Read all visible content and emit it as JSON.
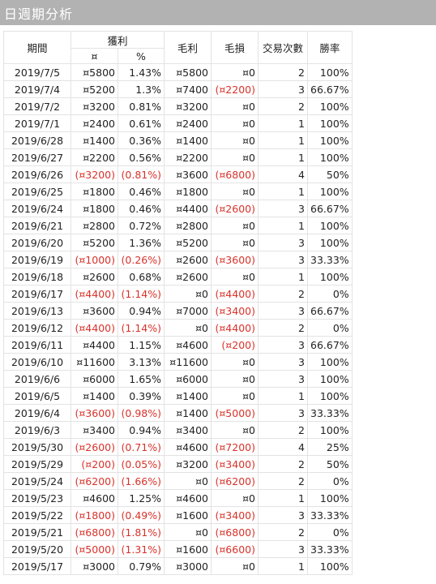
{
  "title": "日週期分析",
  "headers": {
    "period": "期間",
    "profit": "獲利",
    "profit_amount": "¤",
    "profit_percent": "%",
    "gross_profit": "毛利",
    "gross_loss": "毛損",
    "trades": "交易次數",
    "win_rate": "勝率"
  },
  "rows": [
    {
      "date": "2019/7/5",
      "amount": "¤5800",
      "pct": "1.43%",
      "gp": "¤5800",
      "gl": "¤0",
      "trades": "2",
      "win": "100%",
      "neg": false,
      "gl_neg": false
    },
    {
      "date": "2019/7/4",
      "amount": "¤5200",
      "pct": "1.3%",
      "gp": "¤7400",
      "gl": "(¤2200)",
      "trades": "3",
      "win": "66.67%",
      "neg": false,
      "gl_neg": true
    },
    {
      "date": "2019/7/2",
      "amount": "¤3200",
      "pct": "0.81%",
      "gp": "¤3200",
      "gl": "¤0",
      "trades": "2",
      "win": "100%",
      "neg": false,
      "gl_neg": false
    },
    {
      "date": "2019/7/1",
      "amount": "¤2400",
      "pct": "0.61%",
      "gp": "¤2400",
      "gl": "¤0",
      "trades": "1",
      "win": "100%",
      "neg": false,
      "gl_neg": false
    },
    {
      "date": "2019/6/28",
      "amount": "¤1400",
      "pct": "0.36%",
      "gp": "¤1400",
      "gl": "¤0",
      "trades": "1",
      "win": "100%",
      "neg": false,
      "gl_neg": false
    },
    {
      "date": "2019/6/27",
      "amount": "¤2200",
      "pct": "0.56%",
      "gp": "¤2200",
      "gl": "¤0",
      "trades": "1",
      "win": "100%",
      "neg": false,
      "gl_neg": false
    },
    {
      "date": "2019/6/26",
      "amount": "(¤3200)",
      "pct": "(0.81%)",
      "gp": "¤3600",
      "gl": "(¤6800)",
      "trades": "4",
      "win": "50%",
      "neg": true,
      "gl_neg": true
    },
    {
      "date": "2019/6/25",
      "amount": "¤1800",
      "pct": "0.46%",
      "gp": "¤1800",
      "gl": "¤0",
      "trades": "1",
      "win": "100%",
      "neg": false,
      "gl_neg": false
    },
    {
      "date": "2019/6/24",
      "amount": "¤1800",
      "pct": "0.46%",
      "gp": "¤4400",
      "gl": "(¤2600)",
      "trades": "3",
      "win": "66.67%",
      "neg": false,
      "gl_neg": true
    },
    {
      "date": "2019/6/21",
      "amount": "¤2800",
      "pct": "0.72%",
      "gp": "¤2800",
      "gl": "¤0",
      "trades": "1",
      "win": "100%",
      "neg": false,
      "gl_neg": false
    },
    {
      "date": "2019/6/20",
      "amount": "¤5200",
      "pct": "1.36%",
      "gp": "¤5200",
      "gl": "¤0",
      "trades": "3",
      "win": "100%",
      "neg": false,
      "gl_neg": false
    },
    {
      "date": "2019/6/19",
      "amount": "(¤1000)",
      "pct": "(0.26%)",
      "gp": "¤2600",
      "gl": "(¤3600)",
      "trades": "3",
      "win": "33.33%",
      "neg": true,
      "gl_neg": true
    },
    {
      "date": "2019/6/18",
      "amount": "¤2600",
      "pct": "0.68%",
      "gp": "¤2600",
      "gl": "¤0",
      "trades": "1",
      "win": "100%",
      "neg": false,
      "gl_neg": false
    },
    {
      "date": "2019/6/17",
      "amount": "(¤4400)",
      "pct": "(1.14%)",
      "gp": "¤0",
      "gl": "(¤4400)",
      "trades": "2",
      "win": "0%",
      "neg": true,
      "gl_neg": true
    },
    {
      "date": "2019/6/13",
      "amount": "¤3600",
      "pct": "0.94%",
      "gp": "¤7000",
      "gl": "(¤3400)",
      "trades": "3",
      "win": "66.67%",
      "neg": false,
      "gl_neg": true
    },
    {
      "date": "2019/6/12",
      "amount": "(¤4400)",
      "pct": "(1.14%)",
      "gp": "¤0",
      "gl": "(¤4400)",
      "trades": "2",
      "win": "0%",
      "neg": true,
      "gl_neg": true
    },
    {
      "date": "2019/6/11",
      "amount": "¤4400",
      "pct": "1.15%",
      "gp": "¤4600",
      "gl": "(¤200)",
      "trades": "3",
      "win": "66.67%",
      "neg": false,
      "gl_neg": true
    },
    {
      "date": "2019/6/10",
      "amount": "¤11600",
      "pct": "3.13%",
      "gp": "¤11600",
      "gl": "¤0",
      "trades": "3",
      "win": "100%",
      "neg": false,
      "gl_neg": false
    },
    {
      "date": "2019/6/6",
      "amount": "¤6000",
      "pct": "1.65%",
      "gp": "¤6000",
      "gl": "¤0",
      "trades": "3",
      "win": "100%",
      "neg": false,
      "gl_neg": false
    },
    {
      "date": "2019/6/5",
      "amount": "¤1400",
      "pct": "0.39%",
      "gp": "¤1400",
      "gl": "¤0",
      "trades": "1",
      "win": "100%",
      "neg": false,
      "gl_neg": false
    },
    {
      "date": "2019/6/4",
      "amount": "(¤3600)",
      "pct": "(0.98%)",
      "gp": "¤1400",
      "gl": "(¤5000)",
      "trades": "3",
      "win": "33.33%",
      "neg": true,
      "gl_neg": true
    },
    {
      "date": "2019/6/3",
      "amount": "¤3400",
      "pct": "0.94%",
      "gp": "¤3400",
      "gl": "¤0",
      "trades": "2",
      "win": "100%",
      "neg": false,
      "gl_neg": false
    },
    {
      "date": "2019/5/30",
      "amount": "(¤2600)",
      "pct": "(0.71%)",
      "gp": "¤4600",
      "gl": "(¤7200)",
      "trades": "4",
      "win": "25%",
      "neg": true,
      "gl_neg": true
    },
    {
      "date": "2019/5/29",
      "amount": "(¤200)",
      "pct": "(0.05%)",
      "gp": "¤3200",
      "gl": "(¤3400)",
      "trades": "2",
      "win": "50%",
      "neg": true,
      "gl_neg": true
    },
    {
      "date": "2019/5/24",
      "amount": "(¤6200)",
      "pct": "(1.66%)",
      "gp": "¤0",
      "gl": "(¤6200)",
      "trades": "2",
      "win": "0%",
      "neg": true,
      "gl_neg": true
    },
    {
      "date": "2019/5/23",
      "amount": "¤4600",
      "pct": "1.25%",
      "gp": "¤4600",
      "gl": "¤0",
      "trades": "1",
      "win": "100%",
      "neg": false,
      "gl_neg": false
    },
    {
      "date": "2019/5/22",
      "amount": "(¤1800)",
      "pct": "(0.49%)",
      "gp": "¤1600",
      "gl": "(¤3400)",
      "trades": "3",
      "win": "33.33%",
      "neg": true,
      "gl_neg": true
    },
    {
      "date": "2019/5/21",
      "amount": "(¤6800)",
      "pct": "(1.81%)",
      "gp": "¤0",
      "gl": "(¤6800)",
      "trades": "2",
      "win": "0%",
      "neg": true,
      "gl_neg": true
    },
    {
      "date": "2019/5/20",
      "amount": "(¤5000)",
      "pct": "(1.31%)",
      "gp": "¤1600",
      "gl": "(¤6600)",
      "trades": "3",
      "win": "33.33%",
      "neg": true,
      "gl_neg": true
    },
    {
      "date": "2019/5/17",
      "amount": "¤3000",
      "pct": "0.79%",
      "gp": "¤3000",
      "gl": "¤0",
      "trades": "1",
      "win": "100%",
      "neg": false,
      "gl_neg": false
    }
  ],
  "colors": {
    "title_bar_bg": "#b2b2b2",
    "title_text": "#ffffff",
    "negative": "#d9322a",
    "grid_line": "#e3e3e3"
  }
}
